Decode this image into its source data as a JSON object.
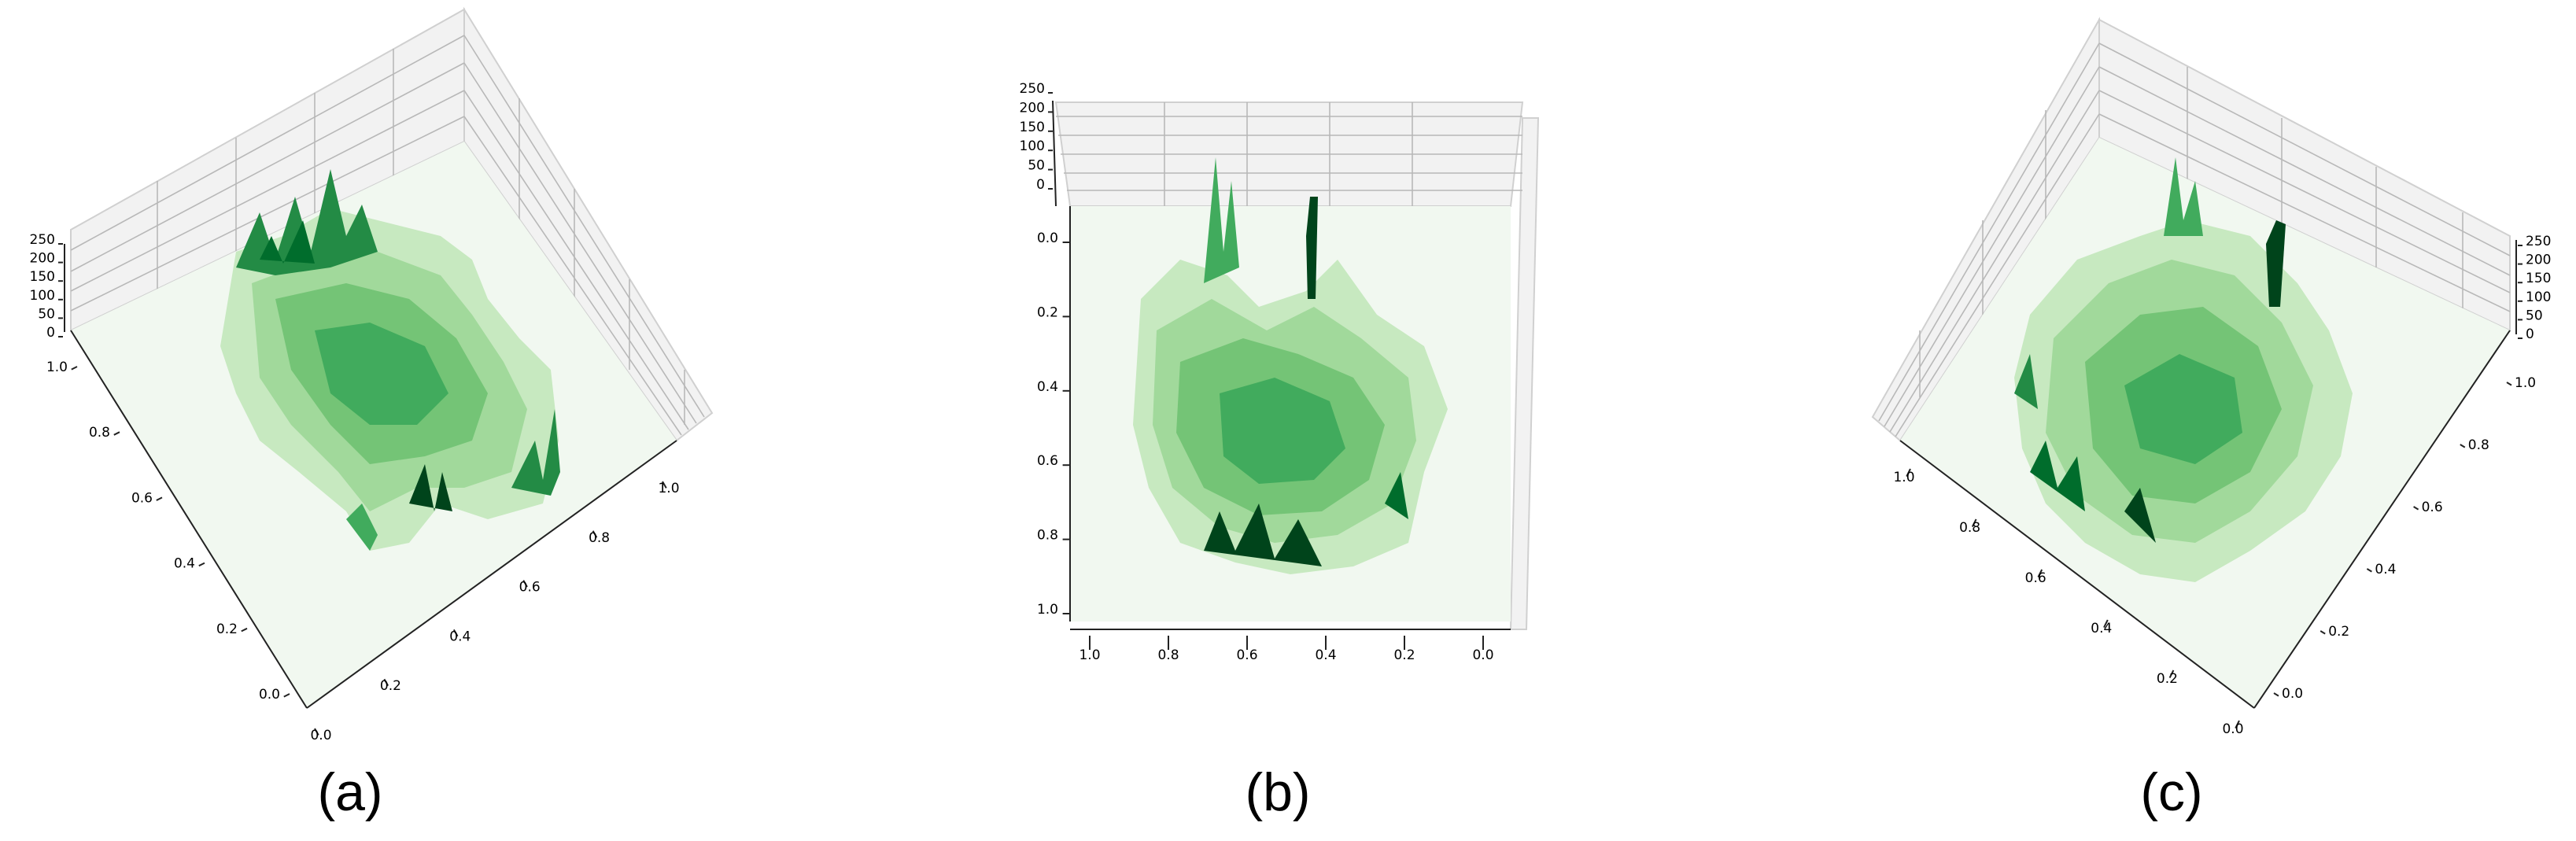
{
  "chart_data": [
    {
      "type": "surface3d",
      "panel_label": "(a)",
      "zlim": [
        0,
        250
      ],
      "x_ticks": [
        "0.0",
        "0.2",
        "0.4",
        "0.6",
        "0.8",
        "1.0"
      ],
      "y_ticks": [
        "0.0",
        "0.2",
        "0.4",
        "0.6",
        "0.8",
        "1.0"
      ],
      "z_ticks": [
        "0",
        "50",
        "100",
        "150",
        "200",
        "250"
      ],
      "colormap": "Greens",
      "grid": true
    },
    {
      "type": "surface3d",
      "panel_label": "(b)",
      "zlim": [
        0,
        250
      ],
      "x_ticks": [
        "1.0",
        "0.8",
        "0.6",
        "0.4",
        "0.2",
        "0.0"
      ],
      "y_ticks": [
        "0.0",
        "0.2",
        "0.4",
        "0.6",
        "0.8",
        "1.0"
      ],
      "z_ticks": [
        "0",
        "50",
        "100",
        "150",
        "200",
        "250"
      ],
      "colormap": "Greens",
      "grid": true
    },
    {
      "type": "surface3d",
      "panel_label": "(c)",
      "zlim": [
        0,
        250
      ],
      "x_ticks": [
        "0.0",
        "0.2",
        "0.4",
        "0.6",
        "0.8",
        "1.0"
      ],
      "y_ticks": [
        "0.0",
        "0.2",
        "0.4",
        "0.6",
        "0.8",
        "1.0"
      ],
      "z_ticks": [
        "0",
        "50",
        "100",
        "150",
        "200",
        "250"
      ],
      "colormap": "Greens",
      "grid": true
    }
  ],
  "colors": {
    "green_light": "#c7e9c0",
    "green_mid": "#74c476",
    "green_dark": "#00441b",
    "floor": "#f1f8f0",
    "pane": "#f2f2f2"
  }
}
